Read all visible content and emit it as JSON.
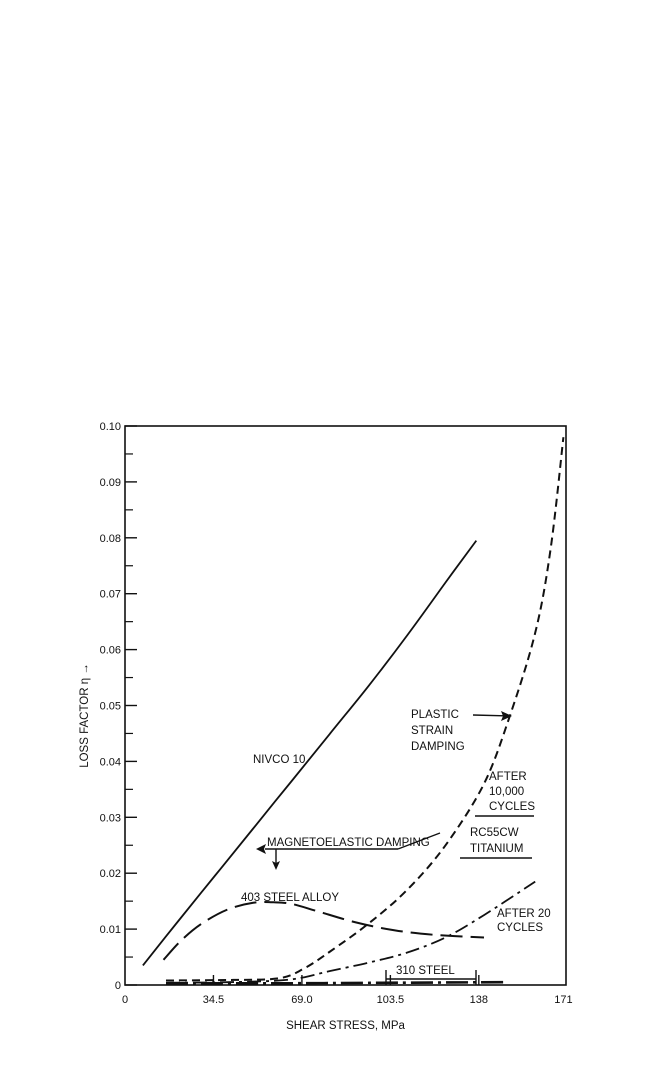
{
  "chart_data": {
    "type": "line",
    "title": "",
    "xlabel": "SHEAR STRESS, MPa",
    "ylabel": "LOSS FACTOR η →",
    "xlim": [
      0,
      172
    ],
    "ylim": [
      0,
      0.1
    ],
    "xticks": [
      {
        "value": 0,
        "label": "0"
      },
      {
        "value": 34.5,
        "label": "34.5"
      },
      {
        "value": 69.0,
        "label": "69.0"
      },
      {
        "value": 103.5,
        "label": "103.5"
      },
      {
        "value": 138,
        "label": "138"
      },
      {
        "value": 171,
        "label": "171"
      }
    ],
    "yticks": [
      {
        "value": 0,
        "label": "0"
      },
      {
        "value": 0.01,
        "label": "0.01"
      },
      {
        "value": 0.02,
        "label": "0.02"
      },
      {
        "value": 0.03,
        "label": "0.03"
      },
      {
        "value": 0.04,
        "label": "0.04"
      },
      {
        "value": 0.05,
        "label": "0.05"
      },
      {
        "value": 0.06,
        "label": "0.06"
      },
      {
        "value": 0.07,
        "label": "0.07"
      },
      {
        "value": 0.08,
        "label": "0.08"
      },
      {
        "value": 0.09,
        "label": "0.09"
      },
      {
        "value": 0.1,
        "label": "0.10"
      }
    ],
    "grid": false,
    "series": [
      {
        "name": "NIVCO 10",
        "style": "solid",
        "x": [
          7,
          20,
          35,
          50,
          65,
          80,
          95,
          110,
          125,
          137
        ],
        "y": [
          0.0035,
          0.011,
          0.0195,
          0.028,
          0.0365,
          0.045,
          0.0535,
          0.0625,
          0.072,
          0.0795
        ]
      },
      {
        "name": "403 STEEL ALLOY",
        "style": "long-dash",
        "x": [
          15,
          22,
          30,
          40,
          50,
          58,
          65,
          75,
          90,
          105,
          120,
          140
        ],
        "y": [
          0.0045,
          0.008,
          0.011,
          0.0135,
          0.0147,
          0.0148,
          0.0145,
          0.0132,
          0.0112,
          0.0098,
          0.009,
          0.0085
        ]
      },
      {
        "name": "AFTER 10,000 CYCLES",
        "style": "short-dash",
        "x": [
          16,
          40,
          60,
          70,
          80,
          95,
          110,
          125,
          140,
          150,
          160,
          166,
          171
        ],
        "y": [
          0.0008,
          0.0009,
          0.0012,
          0.003,
          0.006,
          0.011,
          0.017,
          0.025,
          0.036,
          0.048,
          0.063,
          0.078,
          0.098
        ]
      },
      {
        "name": "AFTER 20 CYCLES",
        "style": "dash-dot",
        "x": [
          16,
          40,
          60,
          70,
          80,
          95,
          110,
          125,
          140,
          160
        ],
        "y": [
          0.0004,
          0.0005,
          0.0008,
          0.0014,
          0.0025,
          0.004,
          0.0058,
          0.0085,
          0.0125,
          0.0185
        ]
      },
      {
        "name": "310 STEEL",
        "style": "dash-dot-heavy",
        "x": [
          16,
          60,
          100,
          148
        ],
        "y": [
          0.0003,
          0.0003,
          0.0004,
          0.0005
        ]
      }
    ],
    "annotations": [
      {
        "text": "NIVCO 10"
      },
      {
        "text": "403 STEEL ALLOY"
      },
      {
        "text": "MAGNETOELASTIC DAMPING"
      },
      {
        "text": "PLASTIC STRAIN DAMPING",
        "lines": [
          "PLASTIC",
          "STRAIN",
          "DAMPING"
        ]
      },
      {
        "text": "AFTER 10,000 CYCLES",
        "lines": [
          "AFTER",
          "10,000",
          "CYCLES"
        ]
      },
      {
        "text": "RC55CW TITANIUM",
        "lines": [
          "RC55CW",
          "TITANIUM"
        ]
      },
      {
        "text": "AFTER 20 CYCLES",
        "lines": [
          "AFTER 20",
          "CYCLES"
        ]
      },
      {
        "text": "310 STEEL"
      }
    ]
  }
}
